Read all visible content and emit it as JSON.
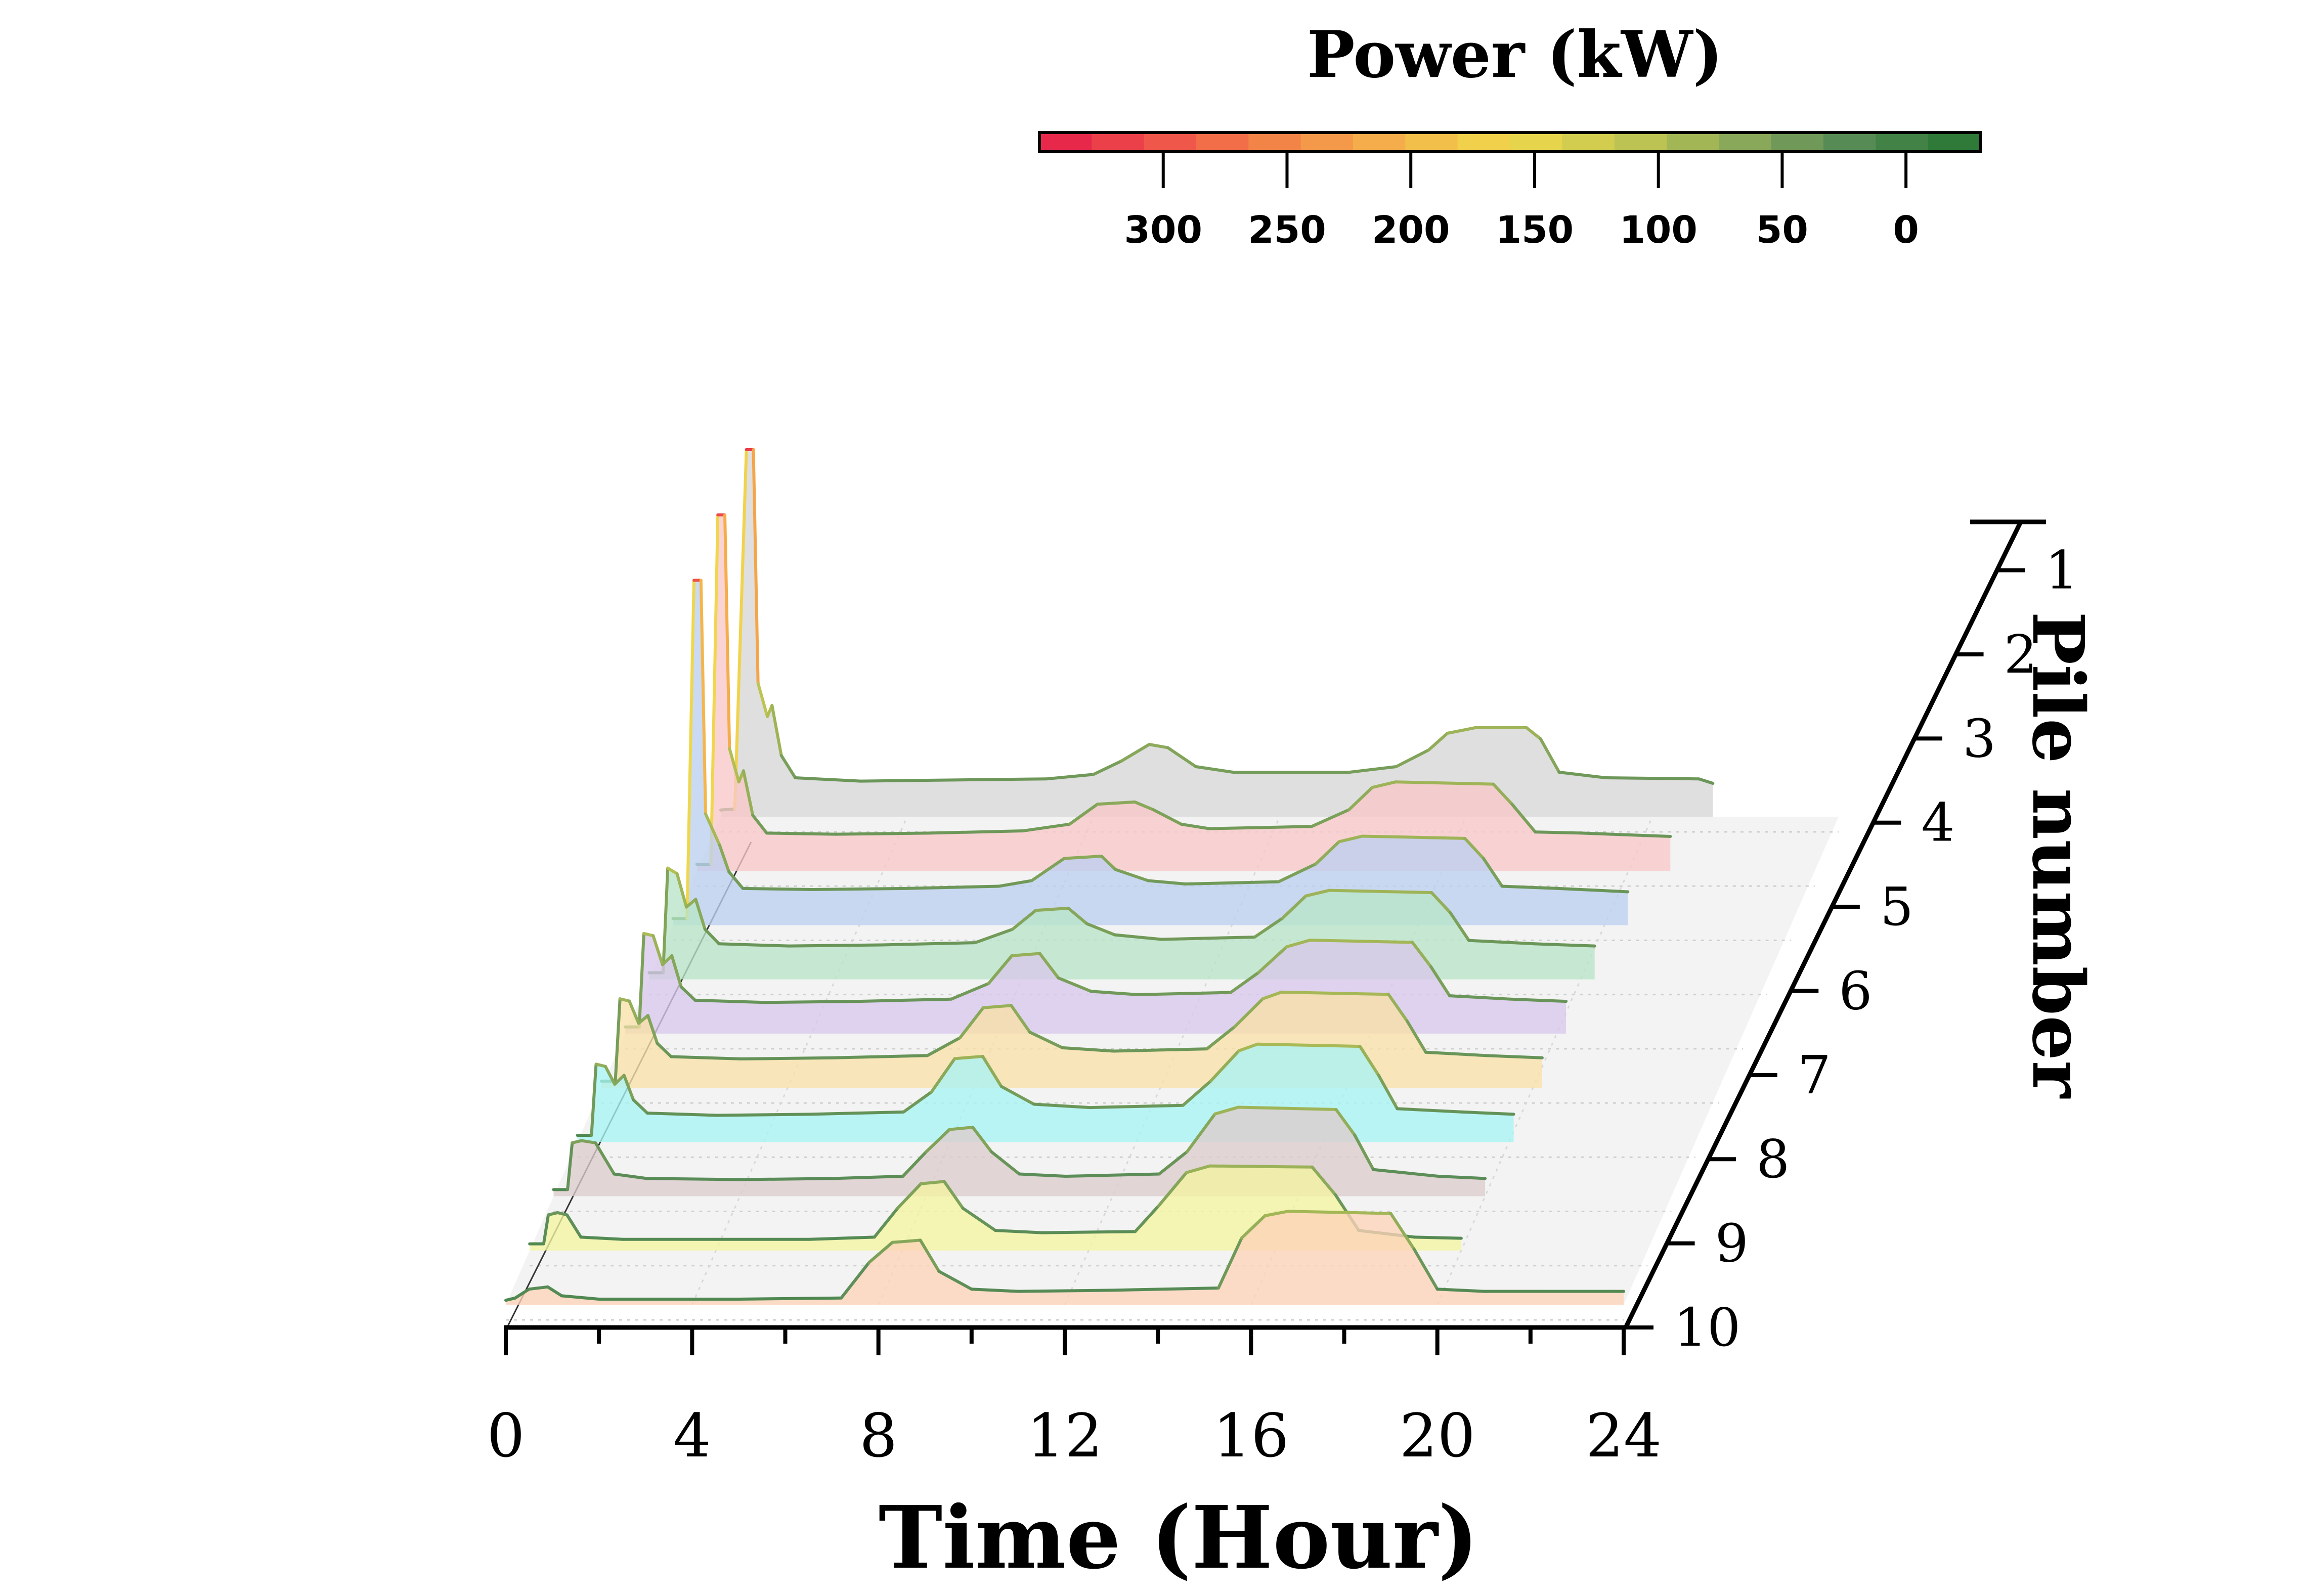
{
  "chart_data": {
    "type": "area",
    "subtype": "3d-waterfall",
    "xlabel": "Time (Hour)",
    "zlabel": "Pile number",
    "x_ticks": [
      0,
      4,
      8,
      12,
      16,
      20,
      24
    ],
    "xlim": [
      0,
      24
    ],
    "z_ticks": [
      "1",
      "2",
      "3",
      "4",
      "5",
      "6",
      "7",
      "8",
      "9",
      "10"
    ],
    "colorbar": {
      "title": "Power (kW)",
      "ticks": [
        300,
        250,
        200,
        150,
        100,
        50,
        0
      ],
      "range": [
        350,
        -30
      ],
      "colors": [
        "#e8284a",
        "#ef5a4a",
        "#f48a48",
        "#f4b44a",
        "#f0d84c",
        "#c6c850",
        "#8fac5a",
        "#5a8c58",
        "#2f7a38"
      ]
    },
    "ylim": [
      0,
      350
    ],
    "series": [
      {
        "name": "1",
        "fill": "#d6d6d6",
        "points": [
          [
            0,
            6
          ],
          [
            0.3,
            7
          ],
          [
            0.55,
            330
          ],
          [
            0.7,
            330
          ],
          [
            0.8,
            120
          ],
          [
            1.0,
            90
          ],
          [
            1.1,
            100
          ],
          [
            1.3,
            55
          ],
          [
            1.6,
            35
          ],
          [
            3,
            32
          ],
          [
            5,
            33
          ],
          [
            7,
            34
          ],
          [
            8,
            38
          ],
          [
            8.6,
            50
          ],
          [
            9.2,
            65
          ],
          [
            9.6,
            62
          ],
          [
            10.2,
            45
          ],
          [
            11,
            40
          ],
          [
            13.5,
            40
          ],
          [
            14.5,
            45
          ],
          [
            15.2,
            60
          ],
          [
            15.6,
            75
          ],
          [
            16.2,
            80
          ],
          [
            17.3,
            80
          ],
          [
            17.6,
            70
          ],
          [
            18.0,
            40
          ],
          [
            19,
            35
          ],
          [
            21,
            34
          ],
          [
            21.3,
            30
          ]
        ]
      },
      {
        "name": "2",
        "fill": "#f8c8c8",
        "points": [
          [
            0,
            6
          ],
          [
            0.3,
            6
          ],
          [
            0.45,
            320
          ],
          [
            0.6,
            320
          ],
          [
            0.7,
            110
          ],
          [
            0.9,
            80
          ],
          [
            1.0,
            90
          ],
          [
            1.2,
            50
          ],
          [
            1.5,
            34
          ],
          [
            3,
            33
          ],
          [
            5,
            34
          ],
          [
            7,
            36
          ],
          [
            8.0,
            42
          ],
          [
            8.6,
            60
          ],
          [
            9.4,
            62
          ],
          [
            9.8,
            55
          ],
          [
            10.4,
            42
          ],
          [
            11,
            38
          ],
          [
            13.2,
            40
          ],
          [
            14.0,
            55
          ],
          [
            14.5,
            75
          ],
          [
            15,
            80
          ],
          [
            17.1,
            78
          ],
          [
            17.5,
            60
          ],
          [
            18.0,
            35
          ],
          [
            19,
            34
          ],
          [
            20.9,
            31
          ]
        ]
      },
      {
        "name": "3",
        "fill": "#bcd0f0",
        "points": [
          [
            0,
            6
          ],
          [
            0.3,
            6
          ],
          [
            0.45,
            310
          ],
          [
            0.6,
            310
          ],
          [
            0.7,
            100
          ],
          [
            1.0,
            72
          ],
          [
            1.2,
            48
          ],
          [
            1.5,
            33
          ],
          [
            3,
            32
          ],
          [
            5,
            33
          ],
          [
            7,
            35
          ],
          [
            7.7,
            40
          ],
          [
            8.4,
            60
          ],
          [
            9.2,
            62
          ],
          [
            9.5,
            50
          ],
          [
            10.2,
            40
          ],
          [
            11,
            37
          ],
          [
            13,
            39
          ],
          [
            13.8,
            55
          ],
          [
            14.3,
            75
          ],
          [
            14.8,
            80
          ],
          [
            17.0,
            78
          ],
          [
            17.4,
            60
          ],
          [
            17.8,
            35
          ],
          [
            19,
            33
          ],
          [
            20.5,
            30
          ]
        ]
      },
      {
        "name": "4",
        "fill": "#b8e4c8",
        "points": [
          [
            0,
            6
          ],
          [
            0.3,
            6
          ],
          [
            0.4,
            100
          ],
          [
            0.6,
            95
          ],
          [
            0.8,
            65
          ],
          [
            1.0,
            72
          ],
          [
            1.2,
            45
          ],
          [
            1.5,
            32
          ],
          [
            3,
            30
          ],
          [
            5,
            31
          ],
          [
            7,
            33
          ],
          [
            7.8,
            45
          ],
          [
            8.3,
            62
          ],
          [
            9.0,
            64
          ],
          [
            9.4,
            50
          ],
          [
            10,
            40
          ],
          [
            11,
            36
          ],
          [
            13,
            38
          ],
          [
            13.6,
            55
          ],
          [
            14.1,
            75
          ],
          [
            14.6,
            80
          ],
          [
            16.8,
            78
          ],
          [
            17.2,
            60
          ],
          [
            17.6,
            35
          ],
          [
            19,
            32
          ],
          [
            20.3,
            30
          ]
        ]
      },
      {
        "name": "5",
        "fill": "#d8c8ec",
        "points": [
          [
            0,
            6
          ],
          [
            0.3,
            6
          ],
          [
            0.4,
            90
          ],
          [
            0.6,
            88
          ],
          [
            0.8,
            62
          ],
          [
            1.0,
            70
          ],
          [
            1.2,
            42
          ],
          [
            1.5,
            30
          ],
          [
            3,
            28
          ],
          [
            5,
            29
          ],
          [
            7,
            31
          ],
          [
            7.8,
            45
          ],
          [
            8.3,
            70
          ],
          [
            8.9,
            72
          ],
          [
            9.3,
            50
          ],
          [
            10,
            38
          ],
          [
            11,
            35
          ],
          [
            13,
            37
          ],
          [
            13.6,
            55
          ],
          [
            14.2,
            78
          ],
          [
            14.7,
            84
          ],
          [
            16.9,
            82
          ],
          [
            17.3,
            60
          ],
          [
            17.7,
            34
          ],
          [
            19,
            31
          ],
          [
            20.2,
            29
          ]
        ]
      },
      {
        "name": "6",
        "fill": "#f8e0a8",
        "points": [
          [
            0,
            6
          ],
          [
            0.3,
            6
          ],
          [
            0.4,
            80
          ],
          [
            0.6,
            78
          ],
          [
            0.8,
            58
          ],
          [
            1.0,
            65
          ],
          [
            1.2,
            40
          ],
          [
            1.5,
            28
          ],
          [
            3,
            26
          ],
          [
            5,
            27
          ],
          [
            7,
            29
          ],
          [
            7.7,
            45
          ],
          [
            8.2,
            72
          ],
          [
            8.8,
            74
          ],
          [
            9.2,
            50
          ],
          [
            9.9,
            36
          ],
          [
            11,
            33
          ],
          [
            13,
            35
          ],
          [
            13.6,
            55
          ],
          [
            14.2,
            80
          ],
          [
            14.6,
            86
          ],
          [
            16.9,
            84
          ],
          [
            17.3,
            60
          ],
          [
            17.7,
            32
          ],
          [
            19,
            29
          ],
          [
            20.2,
            27
          ]
        ]
      },
      {
        "name": "7",
        "fill": "#a8f4f4",
        "points": [
          [
            0,
            6
          ],
          [
            0.3,
            6
          ],
          [
            0.4,
            70
          ],
          [
            0.6,
            68
          ],
          [
            0.8,
            52
          ],
          [
            1.0,
            60
          ],
          [
            1.2,
            38
          ],
          [
            1.5,
            26
          ],
          [
            3,
            24
          ],
          [
            5,
            25
          ],
          [
            7,
            27
          ],
          [
            7.6,
            45
          ],
          [
            8.1,
            75
          ],
          [
            8.7,
            77
          ],
          [
            9.1,
            50
          ],
          [
            9.8,
            34
          ],
          [
            11,
            31
          ],
          [
            13,
            33
          ],
          [
            13.6,
            55
          ],
          [
            14.2,
            82
          ],
          [
            14.6,
            88
          ],
          [
            16.8,
            86
          ],
          [
            17.2,
            60
          ],
          [
            17.6,
            30
          ],
          [
            19,
            27
          ],
          [
            20.1,
            25
          ]
        ]
      },
      {
        "name": "8",
        "fill": "#dccccc",
        "points": [
          [
            0,
            6
          ],
          [
            0.3,
            6
          ],
          [
            0.4,
            48
          ],
          [
            0.6,
            50
          ],
          [
            0.9,
            48
          ],
          [
            1.3,
            20
          ],
          [
            2,
            16
          ],
          [
            4,
            15
          ],
          [
            6,
            16
          ],
          [
            7.5,
            18
          ],
          [
            8.0,
            40
          ],
          [
            8.5,
            60
          ],
          [
            9.0,
            62
          ],
          [
            9.4,
            40
          ],
          [
            10,
            20
          ],
          [
            11,
            18
          ],
          [
            13,
            20
          ],
          [
            13.6,
            40
          ],
          [
            14.2,
            74
          ],
          [
            14.7,
            80
          ],
          [
            16.8,
            78
          ],
          [
            17.2,
            55
          ],
          [
            17.6,
            24
          ],
          [
            19,
            18
          ],
          [
            20,
            16
          ]
        ]
      },
      {
        "name": "9",
        "fill": "#f4f4a0",
        "points": [
          [
            0,
            6
          ],
          [
            0.3,
            6
          ],
          [
            0.4,
            32
          ],
          [
            0.6,
            34
          ],
          [
            0.8,
            32
          ],
          [
            1.1,
            12
          ],
          [
            2,
            10
          ],
          [
            4,
            10
          ],
          [
            6,
            10
          ],
          [
            7.4,
            12
          ],
          [
            7.9,
            38
          ],
          [
            8.4,
            60
          ],
          [
            8.9,
            62
          ],
          [
            9.3,
            38
          ],
          [
            10,
            18
          ],
          [
            11,
            16
          ],
          [
            13,
            17
          ],
          [
            13.5,
            40
          ],
          [
            14.1,
            70
          ],
          [
            14.6,
            76
          ],
          [
            16.8,
            75
          ],
          [
            17.3,
            50
          ],
          [
            17.8,
            18
          ],
          [
            19,
            12
          ],
          [
            20,
            11
          ]
        ]
      },
      {
        "name": "10",
        "fill": "#fcd4b8",
        "points": [
          [
            0,
            4
          ],
          [
            0.2,
            6
          ],
          [
            0.5,
            14
          ],
          [
            0.9,
            16
          ],
          [
            1.2,
            8
          ],
          [
            2,
            5
          ],
          [
            5,
            5
          ],
          [
            7.2,
            6
          ],
          [
            7.8,
            38
          ],
          [
            8.3,
            56
          ],
          [
            8.9,
            58
          ],
          [
            9.3,
            30
          ],
          [
            10,
            14
          ],
          [
            11,
            12
          ],
          [
            13,
            13
          ],
          [
            15.3,
            15
          ],
          [
            15.8,
            60
          ],
          [
            16.3,
            80
          ],
          [
            16.8,
            84
          ],
          [
            19.0,
            82
          ],
          [
            19.5,
            50
          ],
          [
            20.0,
            14
          ],
          [
            21,
            12
          ],
          [
            24,
            12
          ]
        ]
      }
    ]
  }
}
